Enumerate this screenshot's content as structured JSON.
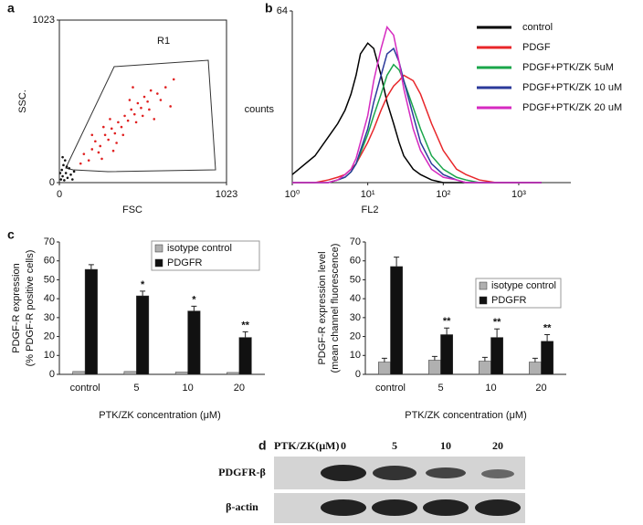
{
  "chart_data": [
    {
      "type": "scatter",
      "panel": "a",
      "xlabel": "FSC",
      "ylabel": "SSC.",
      "annotation": "R1",
      "xlim": [
        0,
        1023
      ],
      "ylim": [
        0,
        1023
      ],
      "xticks": [
        0,
        1023
      ],
      "yticks": [
        0,
        1023
      ],
      "series": [
        {
          "color": "#e02020",
          "x": [
            150,
            200,
            220,
            250,
            280,
            300,
            320,
            340,
            360,
            380,
            400,
            420,
            440,
            460,
            480,
            500,
            520,
            540,
            560,
            600,
            180,
            240,
            270,
            310,
            350,
            390,
            430,
            470,
            510,
            550,
            620,
            650,
            700,
            130,
            200,
            330,
            450,
            580,
            680,
            260
          ],
          "values": [
            180,
            210,
            260,
            230,
            300,
            270,
            340,
            310,
            380,
            350,
            420,
            390,
            460,
            430,
            500,
            470,
            540,
            510,
            580,
            560,
            140,
            190,
            350,
            400,
            250,
            300,
            520,
            380,
            420,
            460,
            520,
            600,
            650,
            120,
            300,
            200,
            600,
            400,
            480,
            150
          ]
        },
        {
          "color": "#111111",
          "x": [
            10,
            20,
            30,
            40,
            15,
            50,
            60,
            25,
            70,
            35,
            80,
            5,
            45,
            90,
            20
          ],
          "values": [
            20,
            40,
            15,
            60,
            80,
            30,
            90,
            110,
            50,
            140,
            20,
            60,
            100,
            70,
            160
          ]
        }
      ]
    },
    {
      "type": "line",
      "panel": "b",
      "xlabel": "FL2",
      "ylabel": "counts",
      "xlog": true,
      "xlim": [
        1,
        4900
      ],
      "ylim": [
        0,
        64
      ],
      "xticks": [
        {
          "value": 1,
          "label": "10⁰"
        },
        {
          "value": 10,
          "label": "10¹"
        },
        {
          "value": 100,
          "label": "10²"
        },
        {
          "value": 1000,
          "label": "10³"
        }
      ],
      "yticks": [
        64
      ],
      "x": [
        1,
        2,
        3,
        4,
        5,
        6,
        7,
        8,
        10,
        12,
        15,
        18,
        22,
        26,
        30,
        40,
        50,
        70,
        100,
        150,
        200,
        300,
        500,
        1000,
        2000
      ],
      "series": [
        {
          "name": "control",
          "color": "#000000",
          "values": [
            3,
            10,
            17,
            22,
            27,
            33,
            40,
            48,
            52,
            50,
            40,
            30,
            22,
            15,
            10,
            5,
            3,
            1,
            0,
            0,
            0,
            0,
            0,
            0,
            0
          ]
        },
        {
          "name": "PDGF",
          "color": "#e8262a",
          "values": [
            0,
            0,
            1,
            2,
            3,
            5,
            7,
            10,
            15,
            20,
            27,
            32,
            36,
            38,
            40,
            38,
            33,
            22,
            12,
            5,
            3,
            1,
            0,
            0,
            0
          ]
        },
        {
          "name": "PDGF+PTK/ZK 5uM",
          "color": "#1aa64a",
          "values": [
            0,
            0,
            0,
            1,
            2,
            4,
            7,
            11,
            18,
            25,
            33,
            40,
            44,
            42,
            38,
            28,
            20,
            10,
            5,
            2,
            1,
            0,
            0,
            0,
            0
          ]
        },
        {
          "name": "PDGF+PTK/ZK 10 uM",
          "color": "#2b3a9a",
          "values": [
            0,
            0,
            0,
            1,
            2,
            4,
            7,
            12,
            20,
            30,
            40,
            48,
            50,
            45,
            38,
            25,
            15,
            7,
            3,
            1,
            0,
            0,
            0,
            0,
            0
          ]
        },
        {
          "name": "PDGF+PTK/ZK 20 uM",
          "color": "#d62ac0",
          "values": [
            0,
            0,
            0,
            1,
            3,
            5,
            9,
            15,
            25,
            38,
            50,
            58,
            55,
            45,
            35,
            20,
            12,
            5,
            2,
            1,
            0,
            0,
            0,
            0,
            0
          ]
        }
      ]
    },
    {
      "type": "bar",
      "panel": "c",
      "xlabel": "PTK/ZK concentration (μM)",
      "ylabel": [
        "PDGF-R expression",
        "(% PDGF-R positive cells)"
      ],
      "categories": [
        "control",
        "5",
        "10",
        "20"
      ],
      "ylim": [
        0,
        70
      ],
      "yticks": [
        0,
        10,
        20,
        30,
        40,
        50,
        60,
        70
      ],
      "series": [
        {
          "name": "isotype control",
          "color": "#b0b0b0",
          "values": [
            1.5,
            1.5,
            1.2,
            1.0
          ]
        },
        {
          "name": "PDGFR",
          "color": "#111111",
          "values": [
            55.5,
            41.5,
            33.5,
            19.5
          ],
          "errors": [
            2.5,
            2.5,
            2.5,
            3
          ],
          "labels": [
            null,
            "*",
            "*",
            "**"
          ]
        }
      ]
    },
    {
      "type": "bar",
      "xlabel": "PTK/ZK concentration (μM)",
      "ylabel": [
        "PDGF-R expression level",
        "(mean channel fluorescence)"
      ],
      "categories": [
        "control",
        "5",
        "10",
        "20"
      ],
      "ylim": [
        0,
        70
      ],
      "yticks": [
        0,
        10,
        20,
        30,
        40,
        50,
        60,
        70
      ],
      "series": [
        {
          "name": "isotype control",
          "color": "#b0b0b0",
          "values": [
            6.5,
            7.5,
            7,
            6.5
          ],
          "errors": [
            2,
            2,
            2,
            2
          ]
        },
        {
          "name": "PDGFR",
          "color": "#111111",
          "values": [
            57,
            21,
            19.5,
            17.5
          ],
          "errors": [
            5,
            3.5,
            4.5,
            3.5
          ],
          "labels": [
            null,
            "**",
            "**",
            "**"
          ]
        }
      ]
    }
  ],
  "blot": {
    "panel": "d",
    "header": "PTK/ZK(μM)",
    "lanes": [
      "0",
      "5",
      "10",
      "20"
    ],
    "rows": [
      "PDGFR-β",
      "β-actin"
    ]
  }
}
